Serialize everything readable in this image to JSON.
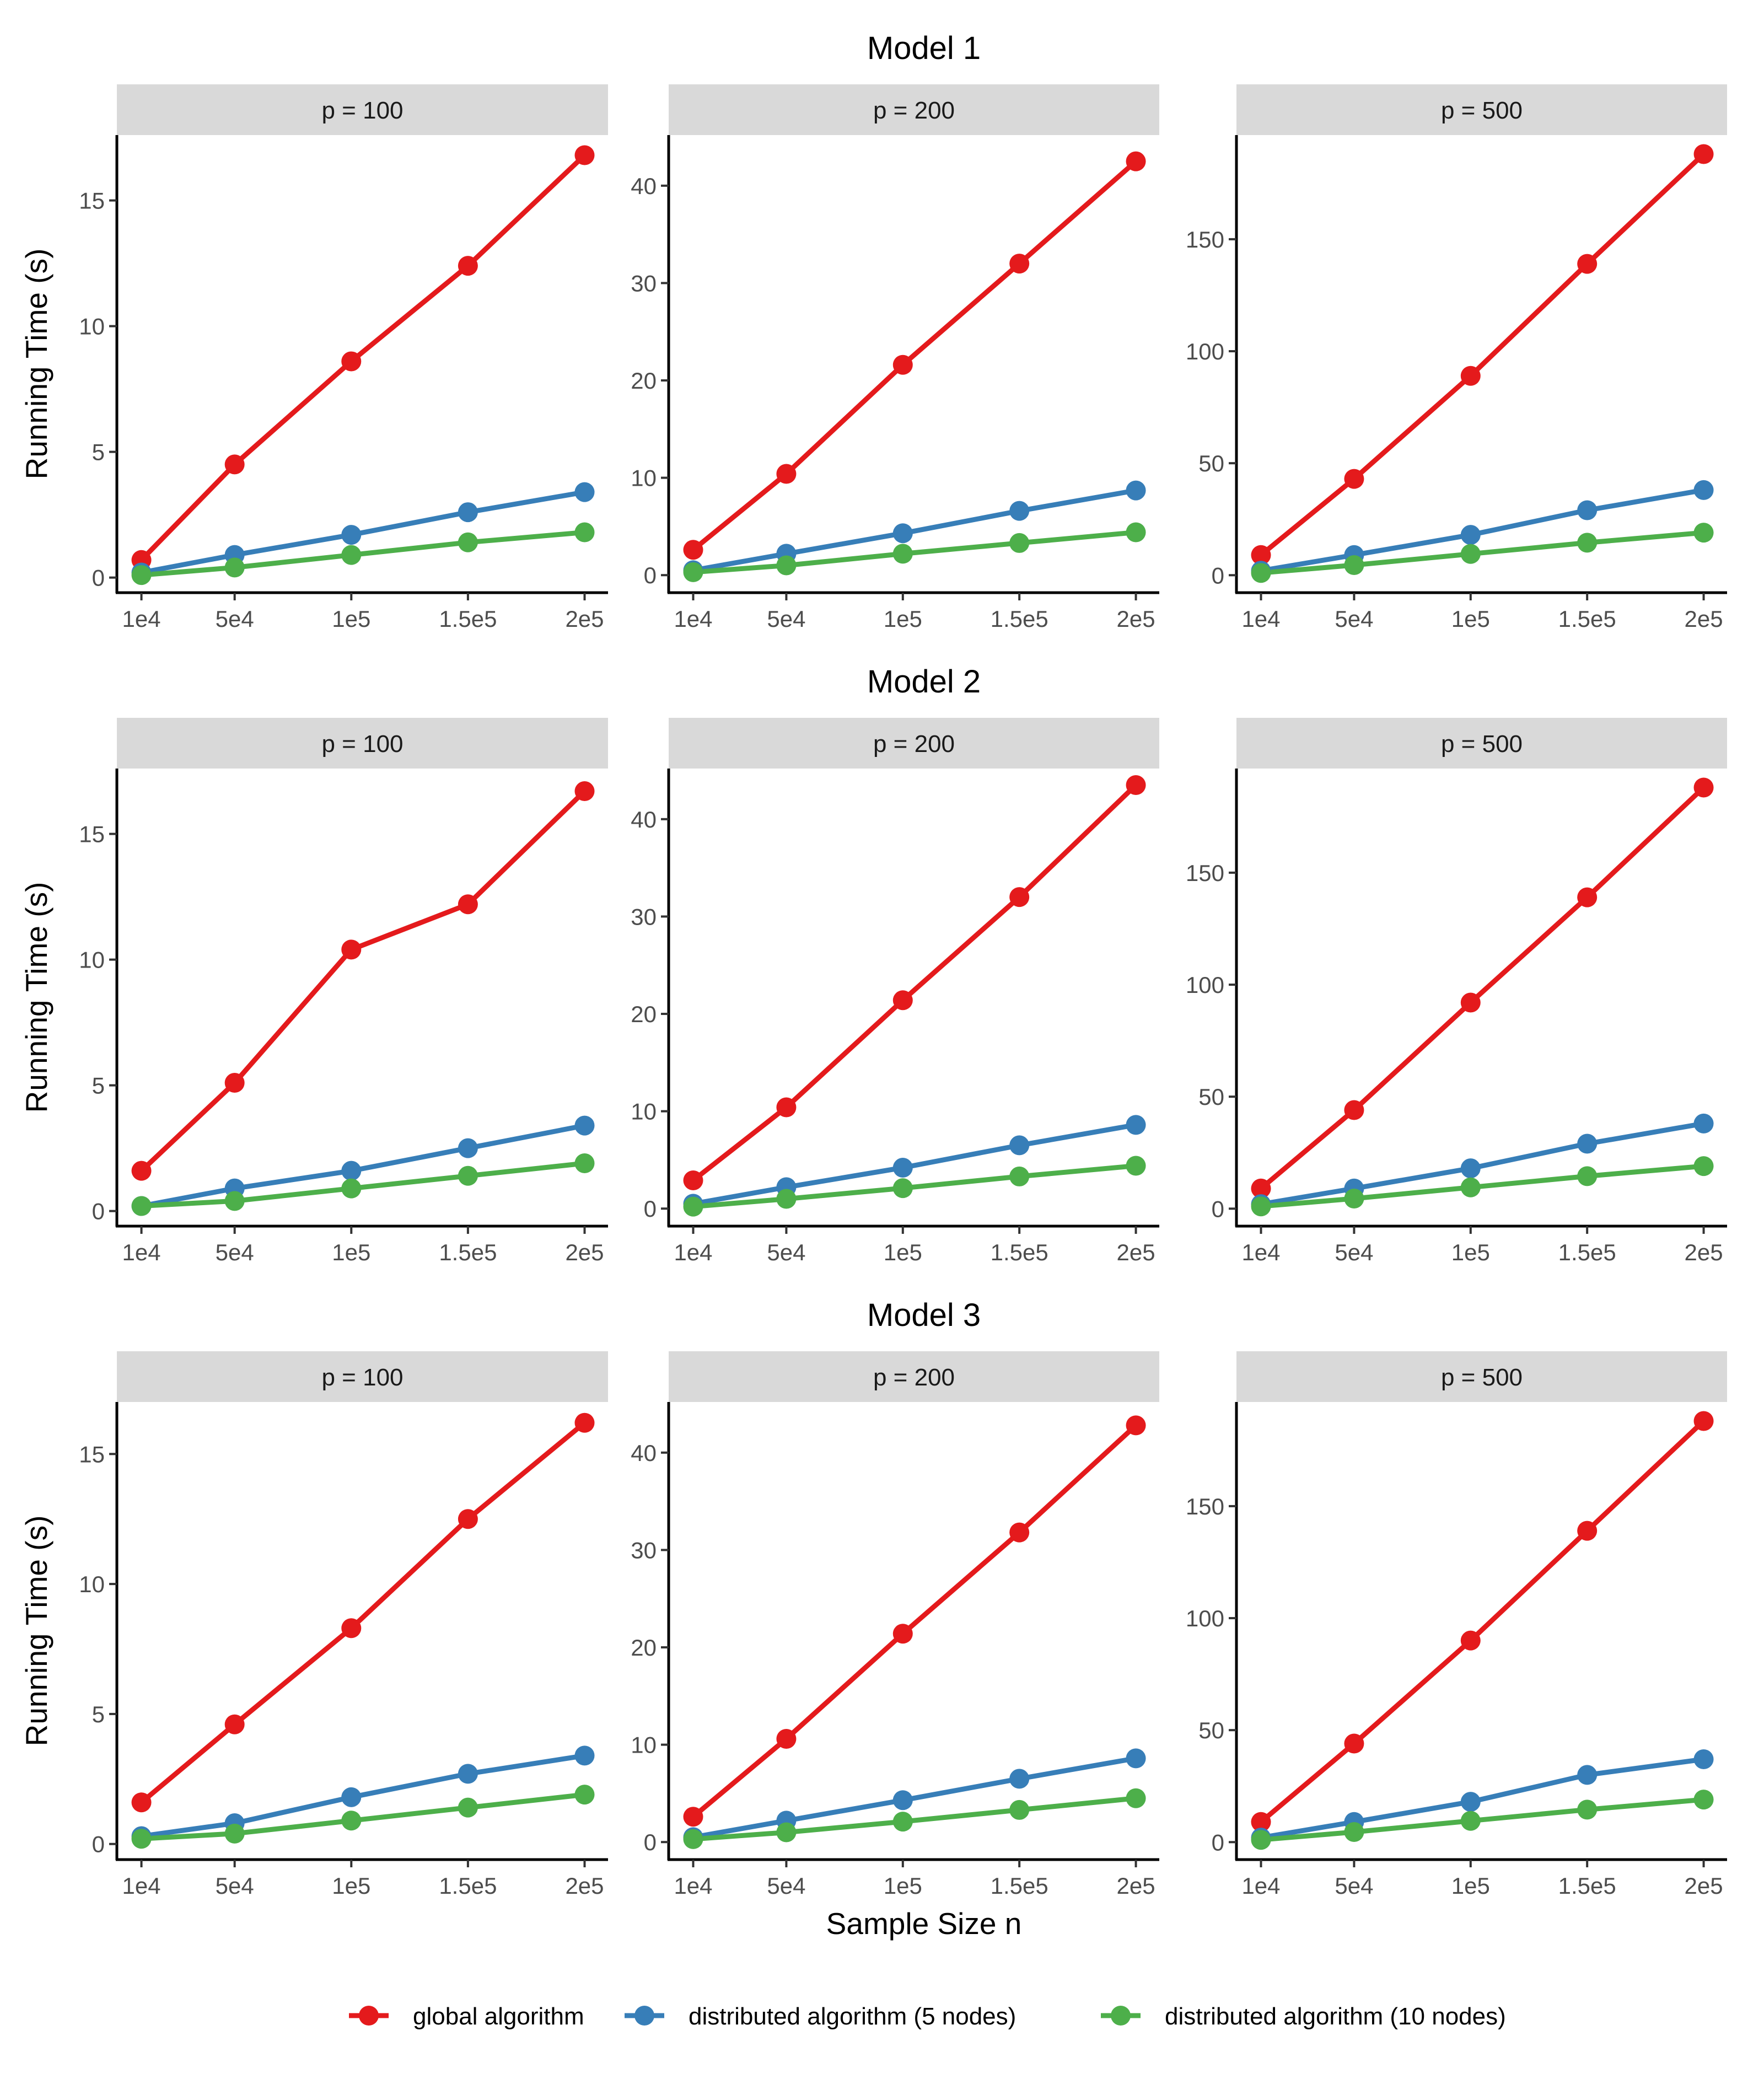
{
  "figure": {
    "x_axis_title": "Sample Size n",
    "y_axis_title": "Running Time (s)"
  },
  "legend": {
    "items": [
      {
        "label": "global algorithm",
        "color": "#e41a1c"
      },
      {
        "label": "distributed algorithm (5 nodes)",
        "color": "#377eb8"
      },
      {
        "label": "distributed algorithm (10 nodes)",
        "color": "#4daf4a"
      }
    ]
  },
  "chart_data": {
    "type": "line",
    "x_categories": [
      "1e4",
      "5e4",
      "1e5",
      "1.5e5",
      "2e5"
    ],
    "x": [
      10000,
      50000,
      100000,
      150000,
      200000
    ],
    "xlabel": "Sample Size n",
    "ylabel": "Running Time (s)",
    "series_names": [
      "global algorithm",
      "distributed algorithm (5 nodes)",
      "distributed algorithm (10 nodes)"
    ],
    "models": [
      {
        "title": "Model 1",
        "panels": [
          {
            "strip": "p = 100",
            "ylim": [
              -0.6,
              17.6
            ],
            "yticks": [
              0,
              5,
              10,
              15
            ],
            "yticklabels": [
              "0",
              "5",
              "10",
              "15"
            ],
            "series": [
              {
                "name": "global algorithm",
                "values": [
                  0.7,
                  4.5,
                  8.6,
                  12.4,
                  16.8
                ]
              },
              {
                "name": "distributed algorithm (5 nodes)",
                "values": [
                  0.2,
                  0.9,
                  1.7,
                  2.6,
                  3.4
                ]
              },
              {
                "name": "distributed algorithm (10 nodes)",
                "values": [
                  0.1,
                  0.4,
                  0.9,
                  1.4,
                  1.8
                ]
              }
            ]
          },
          {
            "strip": "p = 200",
            "ylim": [
              -1.8,
              45.2
            ],
            "yticks": [
              0,
              10,
              20,
              30,
              40
            ],
            "yticklabels": [
              "0",
              "10",
              "20",
              "30",
              "40"
            ],
            "series": [
              {
                "name": "global algorithm",
                "values": [
                  2.6,
                  10.4,
                  21.6,
                  32.0,
                  42.5
                ]
              },
              {
                "name": "distributed algorithm (5 nodes)",
                "values": [
                  0.5,
                  2.2,
                  4.3,
                  6.6,
                  8.7
                ]
              },
              {
                "name": "distributed algorithm (10 nodes)",
                "values": [
                  0.3,
                  1.0,
                  2.2,
                  3.3,
                  4.4
                ]
              }
            ]
          },
          {
            "strip": "p = 500",
            "ylim": [
              -7.8,
              196.5
            ],
            "yticks": [
              0,
              50,
              100,
              150
            ],
            "yticklabels": [
              "0",
              "50",
              "100",
              "150"
            ],
            "series": [
              {
                "name": "global algorithm",
                "values": [
                  9.0,
                  43.0,
                  89.0,
                  139.0,
                  188.0
                ]
              },
              {
                "name": "distributed algorithm (5 nodes)",
                "values": [
                  2.0,
                  9.0,
                  18.0,
                  29.0,
                  38.0
                ]
              },
              {
                "name": "distributed algorithm (10 nodes)",
                "values": [
                  1.0,
                  4.5,
                  9.5,
                  14.5,
                  19.0
                ]
              }
            ]
          }
        ]
      },
      {
        "title": "Model 2",
        "panels": [
          {
            "strip": "p = 100",
            "ylim": [
              -0.6,
              17.6
            ],
            "yticks": [
              0,
              5,
              10,
              15
            ],
            "yticklabels": [
              "0",
              "5",
              "10",
              "15"
            ],
            "series": [
              {
                "name": "global algorithm",
                "values": [
                  1.6,
                  5.1,
                  10.4,
                  12.2,
                  16.7
                ]
              },
              {
                "name": "distributed algorithm (5 nodes)",
                "values": [
                  0.2,
                  0.9,
                  1.6,
                  2.5,
                  3.4
                ]
              },
              {
                "name": "distributed algorithm (10 nodes)",
                "values": [
                  0.2,
                  0.4,
                  0.9,
                  1.4,
                  1.9
                ]
              }
            ]
          },
          {
            "strip": "p = 200",
            "ylim": [
              -1.8,
              45.2
            ],
            "yticks": [
              0,
              10,
              20,
              30,
              40
            ],
            "yticklabels": [
              "0",
              "10",
              "20",
              "30",
              "40"
            ],
            "series": [
              {
                "name": "global algorithm",
                "values": [
                  2.9,
                  10.4,
                  21.4,
                  32.0,
                  43.5
                ]
              },
              {
                "name": "distributed algorithm (5 nodes)",
                "values": [
                  0.5,
                  2.2,
                  4.2,
                  6.5,
                  8.6
                ]
              },
              {
                "name": "distributed algorithm (10 nodes)",
                "values": [
                  0.2,
                  1.0,
                  2.1,
                  3.3,
                  4.4
                ]
              }
            ]
          },
          {
            "strip": "p = 500",
            "ylim": [
              -7.8,
              196.5
            ],
            "yticks": [
              0,
              50,
              100,
              150
            ],
            "yticklabels": [
              "0",
              "50",
              "100",
              "150"
            ],
            "series": [
              {
                "name": "global algorithm",
                "values": [
                  9.0,
                  44.0,
                  92.0,
                  139.0,
                  188.0
                ]
              },
              {
                "name": "distributed algorithm (5 nodes)",
                "values": [
                  2.0,
                  9.0,
                  18.0,
                  29.0,
                  38.0
                ]
              },
              {
                "name": "distributed algorithm (10 nodes)",
                "values": [
                  1.0,
                  4.5,
                  9.5,
                  14.5,
                  19.0
                ]
              }
            ]
          }
        ]
      },
      {
        "title": "Model 3",
        "panels": [
          {
            "strip": "p = 100",
            "ylim": [
              -0.6,
              17.0
            ],
            "yticks": [
              0,
              5,
              10,
              15
            ],
            "yticklabels": [
              "0",
              "5",
              "10",
              "15"
            ],
            "series": [
              {
                "name": "global algorithm",
                "values": [
                  1.6,
                  4.6,
                  8.3,
                  12.5,
                  16.2
                ]
              },
              {
                "name": "distributed algorithm (5 nodes)",
                "values": [
                  0.3,
                  0.8,
                  1.8,
                  2.7,
                  3.4
                ]
              },
              {
                "name": "distributed algorithm (10 nodes)",
                "values": [
                  0.2,
                  0.4,
                  0.9,
                  1.4,
                  1.9
                ]
              }
            ]
          },
          {
            "strip": "p = 200",
            "ylim": [
              -1.8,
              45.2
            ],
            "yticks": [
              0,
              10,
              20,
              30,
              40
            ],
            "yticklabels": [
              "0",
              "10",
              "20",
              "30",
              "40"
            ],
            "series": [
              {
                "name": "global algorithm",
                "values": [
                  2.6,
                  10.6,
                  21.4,
                  31.8,
                  42.8
                ]
              },
              {
                "name": "distributed algorithm (5 nodes)",
                "values": [
                  0.5,
                  2.2,
                  4.3,
                  6.5,
                  8.6
                ]
              },
              {
                "name": "distributed algorithm (10 nodes)",
                "values": [
                  0.3,
                  1.0,
                  2.1,
                  3.3,
                  4.5
                ]
              }
            ]
          },
          {
            "strip": "p = 500",
            "ylim": [
              -7.8,
              196.5
            ],
            "yticks": [
              0,
              50,
              100,
              150
            ],
            "yticklabels": [
              "0",
              "50",
              "100",
              "150"
            ],
            "series": [
              {
                "name": "global algorithm",
                "values": [
                  9.0,
                  44.0,
                  90.0,
                  139.0,
                  188.0
                ]
              },
              {
                "name": "distributed algorithm (5 nodes)",
                "values": [
                  2.0,
                  9.0,
                  18.0,
                  30.0,
                  37.0
                ]
              },
              {
                "name": "distributed algorithm (10 nodes)",
                "values": [
                  1.0,
                  4.5,
                  9.5,
                  14.5,
                  19.0
                ]
              }
            ]
          }
        ]
      }
    ]
  }
}
